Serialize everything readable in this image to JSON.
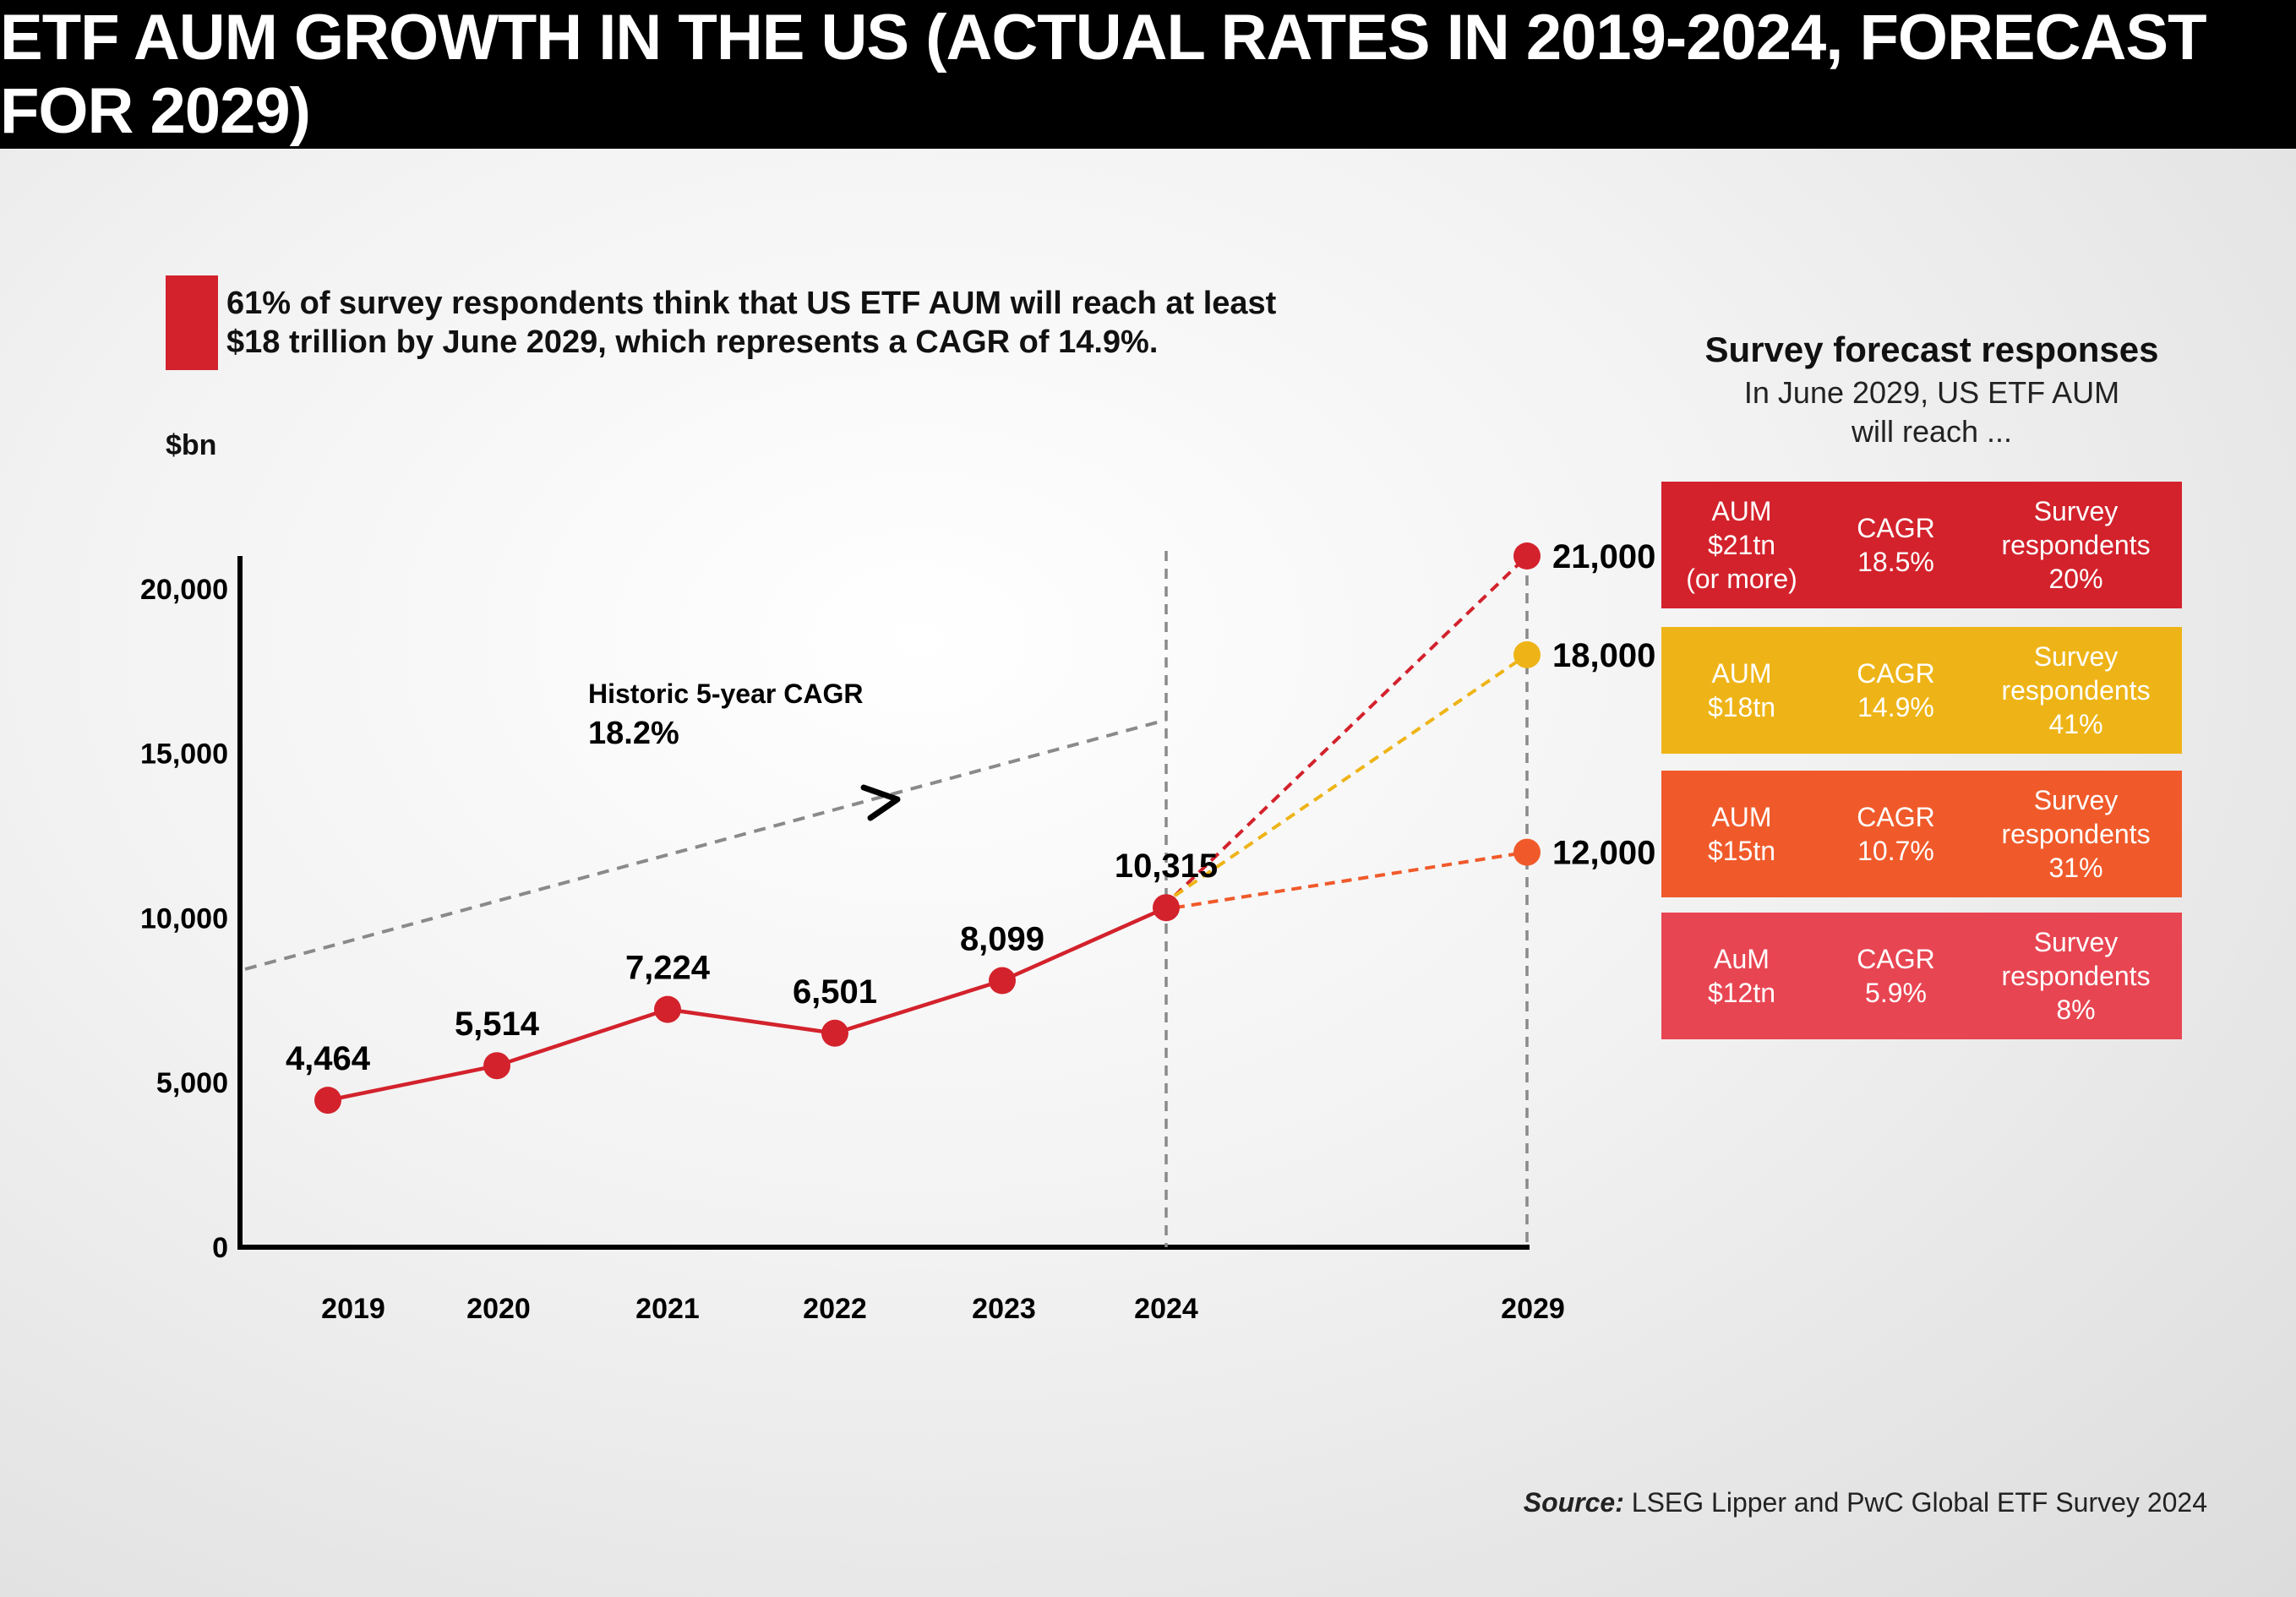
{
  "title": "ETF AUM GROWTH IN THE US (ACTUAL RATES IN 2019-2024, FORECAST FOR 2029)",
  "note": "61% of survey respondents think that US ETF AUM will reach at least $18 trillion by June 2029, which represents a CAGR of 14.9%.",
  "colors": {
    "red": "#d3222c",
    "yellow": "#eeb417",
    "orange": "#f05a2a",
    "pink": "#e84552",
    "grey_dash": "#8a8a8a"
  },
  "chart_data": {
    "type": "line",
    "ylabel": "$bn",
    "ylim": [
      0,
      21000
    ],
    "yticks": [
      {
        "value": 0,
        "label": "0"
      },
      {
        "value": 5000,
        "label": "5,000"
      },
      {
        "value": 10000,
        "label": "10,000"
      },
      {
        "value": 15000,
        "label": "15,000"
      },
      {
        "value": 20000,
        "label": "20,000"
      }
    ],
    "x": [
      2019,
      2020,
      2021,
      2022,
      2023,
      2024
    ],
    "x_tick_labels": [
      "2019",
      "2020",
      "2021",
      "2022",
      "2023",
      "2024",
      "2029"
    ],
    "series": [
      {
        "values": [
          4464,
          5514,
          7224,
          6501,
          8099,
          10315
        ],
        "labels": [
          "4,464",
          "5,514",
          "7,224",
          "6,501",
          "8,099",
          "10,315"
        ],
        "color": "#d3222c"
      }
    ],
    "forecasts": [
      {
        "x": 2029,
        "value": 21000,
        "label": "21,000",
        "color": "#d3222c"
      },
      {
        "x": 2029,
        "value": 18000,
        "label": "18,000",
        "color": "#eeb417"
      },
      {
        "x": 2029,
        "value": 12000,
        "label": "12,000",
        "color": "#f05a2a"
      }
    ],
    "trend": {
      "label_line1": "Historic 5-year CAGR",
      "label_line2": "18.2%",
      "style": "dashed",
      "color": "#8a8a8a"
    },
    "vertical_markers": [
      2024,
      2029
    ],
    "grid": false
  },
  "panel": {
    "title": "Survey forecast responses",
    "subtitle_line1": "In June 2029, US ETF AUM",
    "subtitle_line2": "will reach ...",
    "boxes": [
      {
        "aum_line1": "AUM",
        "aum_line2": "$21tn",
        "aum_line3": "(or more)",
        "cagr_line1": "CAGR",
        "cagr_line2": "18.5%",
        "survey_line1": "Survey",
        "survey_line2": "respondents",
        "survey_line3": "20%",
        "color": "#d3222c"
      },
      {
        "aum_line1": "AUM",
        "aum_line2": "$18tn",
        "aum_line3": "",
        "cagr_line1": "CAGR",
        "cagr_line2": "14.9%",
        "survey_line1": "Survey",
        "survey_line2": "respondents",
        "survey_line3": "41%",
        "color": "#eeb417"
      },
      {
        "aum_line1": "AUM",
        "aum_line2": "$15tn",
        "aum_line3": "",
        "cagr_line1": "CAGR",
        "cagr_line2": "10.7%",
        "survey_line1": "Survey",
        "survey_line2": "respondents",
        "survey_line3": "31%",
        "color": "#f05a2a"
      },
      {
        "aum_line1": "AuM",
        "aum_line2": "$12tn",
        "aum_line3": "",
        "cagr_line1": "CAGR",
        "cagr_line2": "5.9%",
        "survey_line1": "Survey",
        "survey_line2": "respondents",
        "survey_line3": "8%",
        "color": "#e84552"
      }
    ]
  },
  "source_label": "Source:",
  "source_text": "LSEG Lipper and PwC Global ETF Survey 2024"
}
